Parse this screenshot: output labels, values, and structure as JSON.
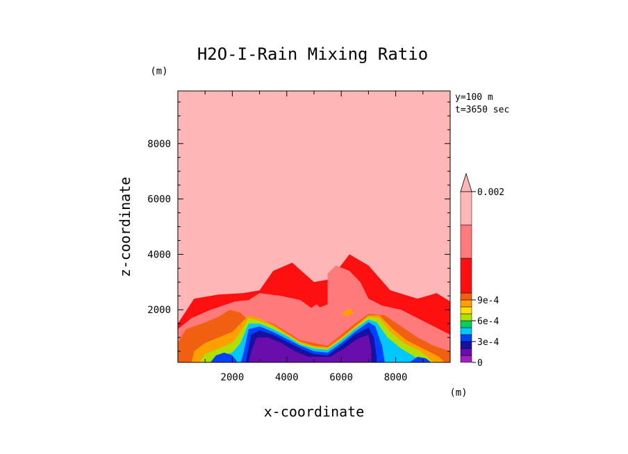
{
  "chart_data": {
    "type": "heatmap",
    "title": "H2O-I-Rain Mixing Ratio",
    "xlabel": "x-coordinate",
    "ylabel": "z-coordinate",
    "x_unit": "(m)",
    "y_unit": "(m)",
    "xlim": [
      0,
      10000
    ],
    "ylim": [
      100,
      9900
    ],
    "x_ticks": [
      "2000",
      "4000",
      "6000",
      "8000"
    ],
    "y_ticks": [
      "2000",
      "4000",
      "6000",
      "8000"
    ],
    "info": [
      "y=100 m",
      "t=3650 sec"
    ],
    "colorbar": {
      "levels": [
        0,
        0.0001,
        0.0002,
        0.0003,
        0.0004,
        0.0005,
        0.0006,
        0.0007,
        0.0008,
        0.0009,
        0.001,
        0.0015,
        0.002
      ],
      "labels": [
        "0",
        "3e-4",
        "6e-4",
        "9e-4",
        "0.002"
      ],
      "colors": [
        "#a020c0",
        "#6a0dad",
        "#1a10a0",
        "#0040ff",
        "#00c8ff",
        "#00d060",
        "#b0e000",
        "#ffe000",
        "#ffa000",
        "#f06010",
        "#ff1010",
        "#ff7a7a",
        "#ffb6b6"
      ],
      "extend": "max"
    },
    "regions": [
      {
        "level": "0.001",
        "points": [
          [
            0,
            100
          ],
          [
            0,
            1500
          ],
          [
            600,
            2400
          ],
          [
            1500,
            2550
          ],
          [
            2400,
            2600
          ],
          [
            3000,
            2700
          ],
          [
            3500,
            3400
          ],
          [
            4200,
            3700
          ],
          [
            5000,
            3000
          ],
          [
            5600,
            3100
          ],
          [
            6300,
            4000
          ],
          [
            7000,
            3600
          ],
          [
            7800,
            2700
          ],
          [
            8800,
            2400
          ],
          [
            9500,
            2600
          ],
          [
            10000,
            2300
          ],
          [
            10000,
            100
          ]
        ]
      },
      {
        "level": "0.0015",
        "points": [
          [
            0,
            100
          ],
          [
            0,
            1300
          ],
          [
            500,
            1700
          ],
          [
            1200,
            2000
          ],
          [
            1800,
            2200
          ],
          [
            2100,
            2300
          ],
          [
            2600,
            2350
          ],
          [
            3000,
            2600
          ],
          [
            3800,
            2500
          ],
          [
            4500,
            2350
          ],
          [
            5000,
            2000
          ],
          [
            5500,
            2200
          ],
          [
            5500,
            3300
          ],
          [
            5800,
            3600
          ],
          [
            6300,
            3400
          ],
          [
            6700,
            3000
          ],
          [
            7000,
            2400
          ],
          [
            7500,
            2150
          ],
          [
            8200,
            2000
          ],
          [
            8800,
            1700
          ],
          [
            9400,
            1400
          ],
          [
            10000,
            1100
          ],
          [
            10000,
            100
          ]
        ]
      },
      {
        "level": "0.0009",
        "points": [
          [
            0,
            100
          ],
          [
            0,
            800
          ],
          [
            300,
            1300
          ],
          [
            900,
            1500
          ],
          [
            1500,
            1750
          ],
          [
            1900,
            2000
          ],
          [
            2300,
            1900
          ],
          [
            2600,
            1600
          ],
          [
            3000,
            1650
          ],
          [
            3500,
            1500
          ],
          [
            4000,
            1200
          ],
          [
            4500,
            900
          ],
          [
            5000,
            800
          ],
          [
            5500,
            700
          ],
          [
            6000,
            1100
          ],
          [
            6500,
            1500
          ],
          [
            7000,
            1850
          ],
          [
            7600,
            1800
          ],
          [
            8200,
            1400
          ],
          [
            8800,
            1000
          ],
          [
            9400,
            700
          ],
          [
            10000,
            500
          ],
          [
            10000,
            100
          ]
        ]
      },
      {
        "level": "0.0008",
        "points": [
          [
            500,
            100
          ],
          [
            600,
            500
          ],
          [
            1000,
            800
          ],
          [
            1500,
            1000
          ],
          [
            2000,
            1200
          ],
          [
            2300,
            1500
          ],
          [
            2600,
            1800
          ],
          [
            3000,
            1700
          ],
          [
            3500,
            1450
          ],
          [
            4000,
            1150
          ],
          [
            4500,
            850
          ],
          [
            5000,
            700
          ],
          [
            5500,
            650
          ],
          [
            6000,
            1000
          ],
          [
            6500,
            1400
          ],
          [
            7000,
            1800
          ],
          [
            7400,
            1800
          ],
          [
            7900,
            1300
          ],
          [
            8400,
            900
          ],
          [
            9000,
            600
          ],
          [
            9600,
            300
          ],
          [
            9800,
            100
          ]
        ]
      },
      {
        "level": "0.0006",
        "points": [
          [
            800,
            100
          ],
          [
            1000,
            400
          ],
          [
            1500,
            600
          ],
          [
            2000,
            800
          ],
          [
            2300,
            1200
          ],
          [
            2600,
            1700
          ],
          [
            3000,
            1600
          ],
          [
            3500,
            1400
          ],
          [
            4000,
            1100
          ],
          [
            4500,
            800
          ],
          [
            5000,
            650
          ],
          [
            5500,
            600
          ],
          [
            6000,
            950
          ],
          [
            6500,
            1350
          ],
          [
            7000,
            1750
          ],
          [
            7400,
            1700
          ],
          [
            7800,
            1200
          ],
          [
            8300,
            800
          ],
          [
            8900,
            500
          ],
          [
            9400,
            100
          ]
        ]
      },
      {
        "level": "0.0004",
        "points": [
          [
            1200,
            100
          ],
          [
            1500,
            350
          ],
          [
            2000,
            450
          ],
          [
            2300,
            800
          ],
          [
            2600,
            1500
          ],
          [
            3000,
            1500
          ],
          [
            3500,
            1300
          ],
          [
            4000,
            1050
          ],
          [
            4500,
            750
          ],
          [
            5000,
            600
          ],
          [
            5500,
            550
          ],
          [
            6000,
            900
          ],
          [
            6500,
            1300
          ],
          [
            7000,
            1650
          ],
          [
            7300,
            1550
          ],
          [
            7700,
            1000
          ],
          [
            8200,
            600
          ],
          [
            8700,
            300
          ],
          [
            9000,
            100
          ]
        ]
      },
      {
        "level": "0.0003",
        "points": [
          [
            2300,
            100
          ],
          [
            2400,
            400
          ],
          [
            2600,
            1300
          ],
          [
            3000,
            1400
          ],
          [
            3500,
            1200
          ],
          [
            4000,
            950
          ],
          [
            4500,
            700
          ],
          [
            5000,
            500
          ],
          [
            5500,
            450
          ],
          [
            6000,
            800
          ],
          [
            6500,
            1200
          ],
          [
            7000,
            1550
          ],
          [
            7250,
            1400
          ],
          [
            7500,
            700
          ],
          [
            7600,
            100
          ]
        ]
      },
      {
        "level": "0.0002",
        "points": [
          [
            2500,
            100
          ],
          [
            2600,
            600
          ],
          [
            2700,
            1100
          ],
          [
            3000,
            1250
          ],
          [
            3500,
            1100
          ],
          [
            4000,
            850
          ],
          [
            4500,
            600
          ],
          [
            5000,
            400
          ],
          [
            5500,
            350
          ],
          [
            6000,
            700
          ],
          [
            6500,
            1100
          ],
          [
            7000,
            1350
          ],
          [
            7200,
            1000
          ],
          [
            7300,
            300
          ],
          [
            7300,
            100
          ]
        ]
      },
      {
        "level": "0.0001",
        "points": [
          [
            2600,
            100
          ],
          [
            2700,
            500
          ],
          [
            2900,
            1000
          ],
          [
            3300,
            1000
          ],
          [
            3800,
            800
          ],
          [
            4300,
            500
          ],
          [
            4800,
            300
          ],
          [
            5600,
            300
          ],
          [
            6100,
            600
          ],
          [
            6600,
            950
          ],
          [
            7000,
            1100
          ],
          [
            7100,
            600
          ],
          [
            7100,
            100
          ]
        ]
      },
      {
        "level": "0.0003",
        "points": [
          [
            1200,
            100
          ],
          [
            1400,
            350
          ],
          [
            1700,
            450
          ],
          [
            2000,
            350
          ],
          [
            2200,
            100
          ]
        ]
      },
      {
        "level": "0.0003",
        "points": [
          [
            8500,
            100
          ],
          [
            8800,
            300
          ],
          [
            9100,
            250
          ],
          [
            9300,
            100
          ]
        ]
      },
      {
        "level": "0.0015",
        "points": [
          [
            4800,
            2000
          ],
          [
            5100,
            2200
          ],
          [
            5300,
            2000
          ],
          [
            5100,
            1850
          ]
        ]
      },
      {
        "level": "0.0015",
        "points": [
          [
            3000,
            2100
          ],
          [
            3200,
            2300
          ],
          [
            3400,
            2150
          ]
        ]
      },
      {
        "level": "0.0008",
        "points": [
          [
            6000,
            1850
          ],
          [
            6300,
            2050
          ],
          [
            6500,
            1900
          ],
          [
            6200,
            1750
          ]
        ]
      }
    ]
  }
}
